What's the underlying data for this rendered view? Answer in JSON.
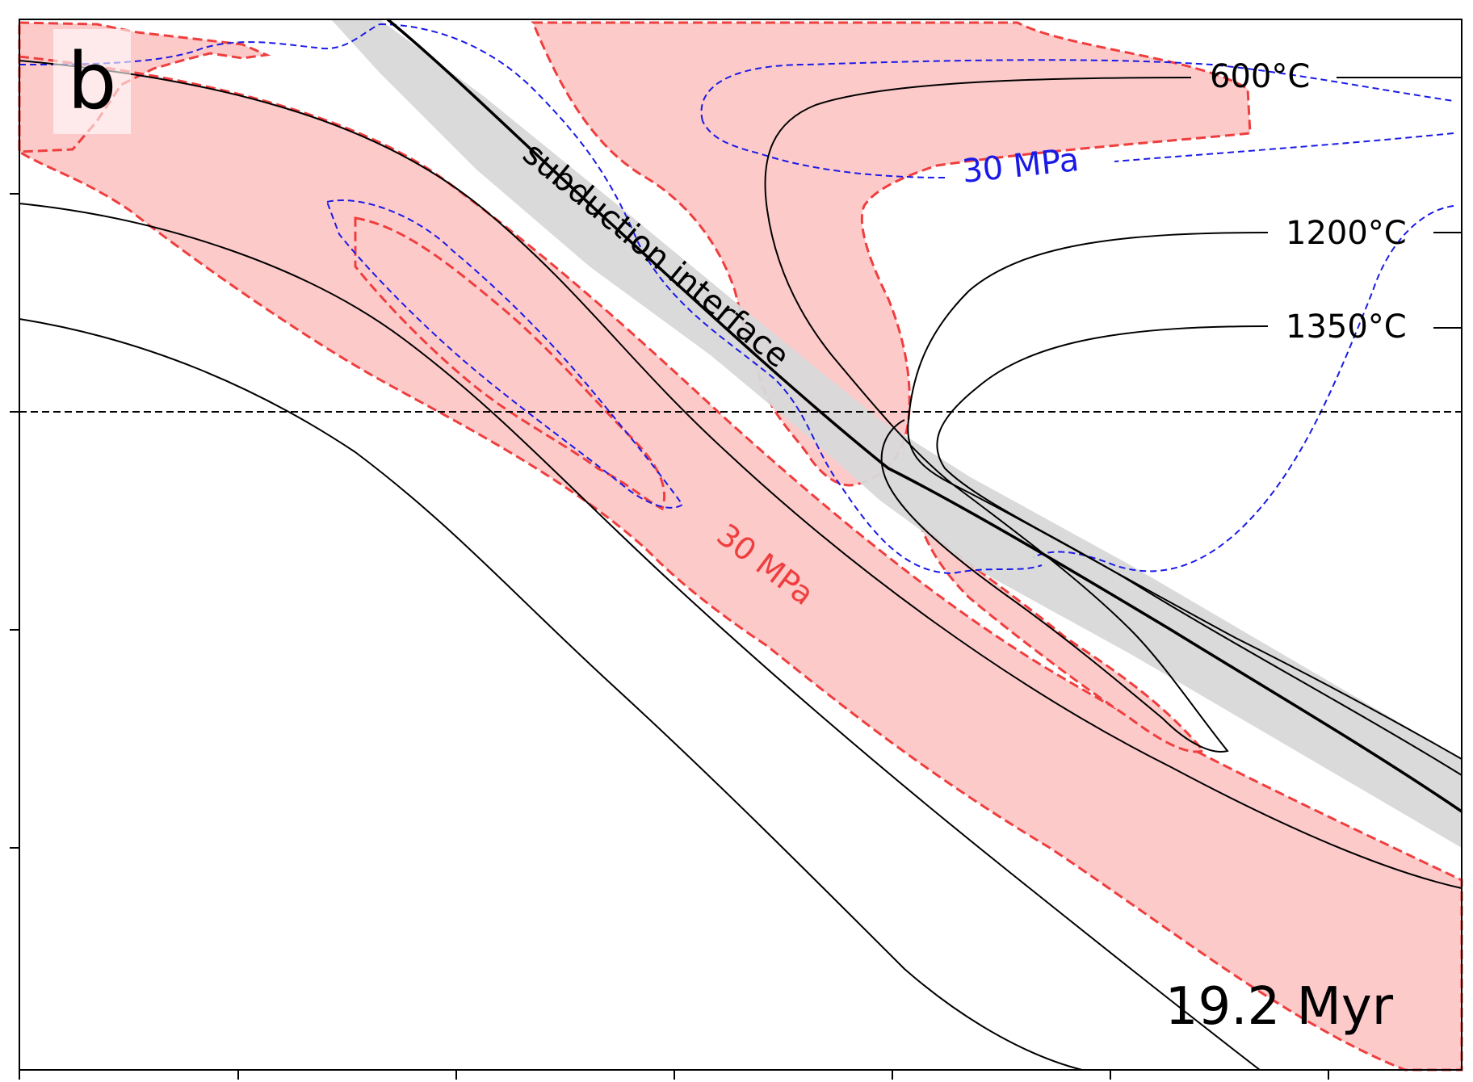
{
  "panel": {
    "letter": "b",
    "time_label": "19.2 Myr"
  },
  "annotations": {
    "interface": "subduction interface",
    "blue_contour": "30 MPa",
    "red_contour": "30 MPa",
    "isotherm_600": "600°C",
    "isotherm_1200": "1200°C",
    "isotherm_1350": "1350°C"
  },
  "colors": {
    "stress_fill": "#fdcaca",
    "red_contour": "#ef3e3e",
    "blue_contour": "#1a1ae6",
    "interface_band": "#d8d8d8",
    "isotherm": "#000000"
  }
}
